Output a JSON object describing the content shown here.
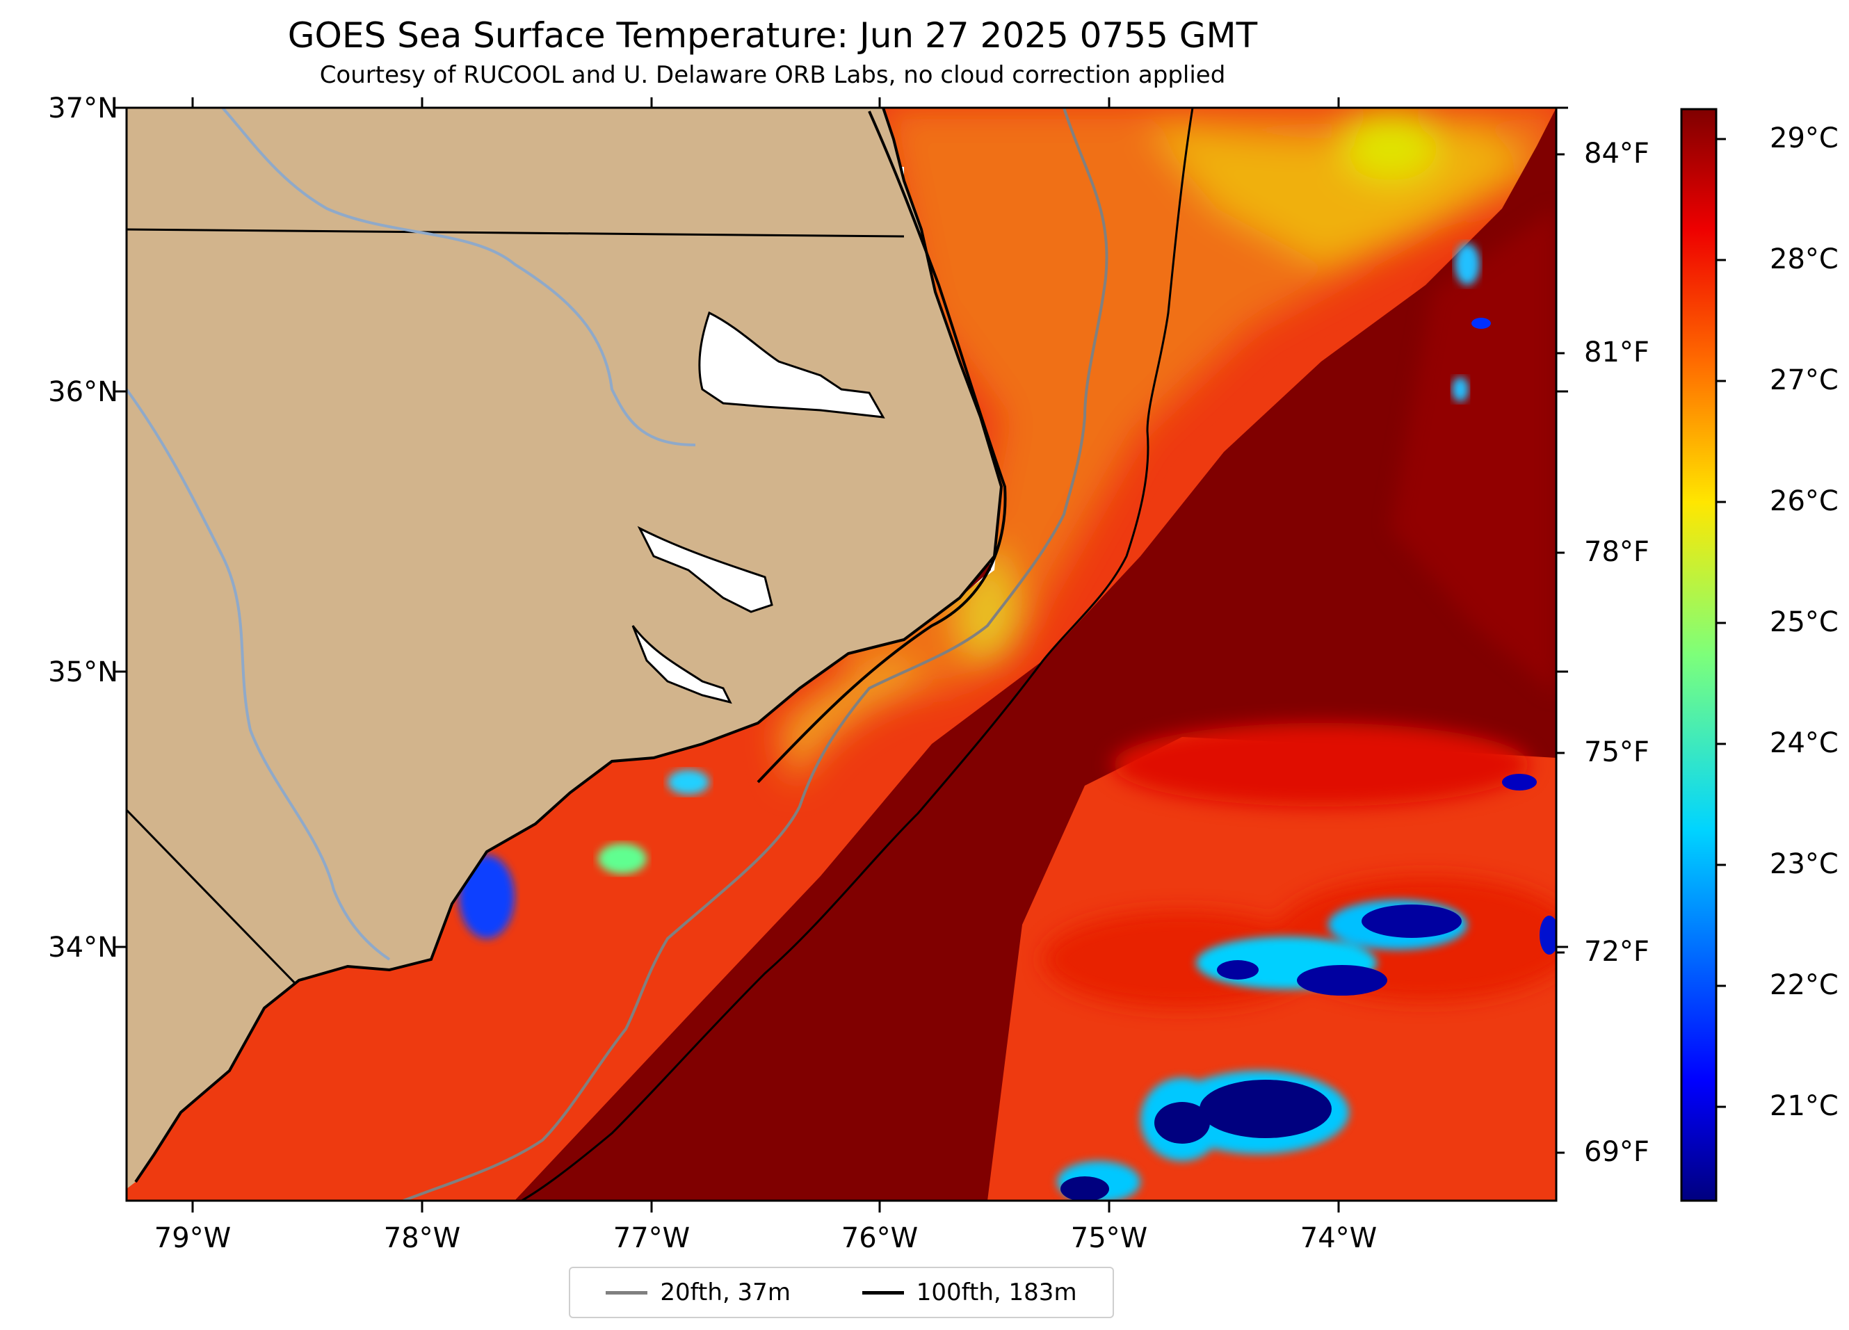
{
  "title": "GOES Sea Surface Temperature: Jun 27 2025 0755 GMT",
  "subtitle": "Courtesy of RUCOOL and U. Delaware ORB Labs, no cloud correction applied",
  "lat_labels": [
    "37°N",
    "36°N",
    "35°N",
    "34°N"
  ],
  "lon_labels": [
    "79°W",
    "78°W",
    "77°W",
    "76°W",
    "75°W",
    "74°W"
  ],
  "fahrenheit_labels": [
    "84°F",
    "81°F",
    "78°F",
    "75°F",
    "72°F",
    "69°F"
  ],
  "colorbar": {
    "labels": [
      "29°C",
      "28°C",
      "27°C",
      "26°C",
      "25°C",
      "24°C",
      "23°C",
      "22°C",
      "21°C"
    ],
    "min_c": 20.3,
    "max_c": 29.3,
    "colormap": "jet"
  },
  "legend": [
    {
      "label": "20fth, 37m",
      "color": "#808080"
    },
    {
      "label": "100fth, 183m",
      "color": "#000000"
    }
  ],
  "colors": {
    "land": "#d2b48c",
    "rivers": "#8fa9c9",
    "gulf_stream": "#800000",
    "shelf_warm": "#ee3a10",
    "nearshore_cool": "#f5a623"
  }
}
